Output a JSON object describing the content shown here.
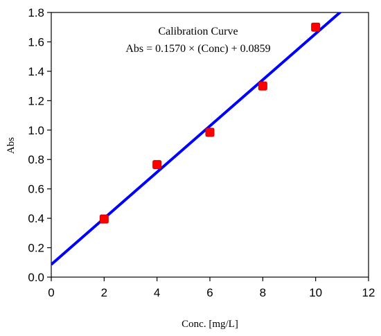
{
  "chart_data": {
    "type": "scatter",
    "title": "Calibration Curve",
    "subtitle": "Abs = 0.1570 × (Conc) + 0.0859",
    "xlabel": "Conc. [mg/L]",
    "ylabel": "Abs",
    "xlim": [
      0,
      12
    ],
    "ylim": [
      0,
      1.8
    ],
    "x_ticks": [
      0,
      2,
      4,
      6,
      8,
      10,
      12
    ],
    "y_ticks": [
      0.0,
      0.2,
      0.4,
      0.6,
      0.8,
      1.0,
      1.2,
      1.4,
      1.6,
      1.8
    ],
    "x_tick_labels": [
      "0",
      "2",
      "4",
      "6",
      "8",
      "10",
      "12"
    ],
    "y_tick_labels": [
      "0.0",
      "0.2",
      "0.4",
      "0.6",
      "0.8",
      "1.0",
      "1.2",
      "1.4",
      "1.6",
      "1.8"
    ],
    "grid": false,
    "series": [
      {
        "kind": "points",
        "color": "#ff0000",
        "marker": "square",
        "x": [
          2,
          4,
          6,
          8,
          10
        ],
        "y": [
          0.395,
          0.765,
          0.985,
          1.3,
          1.7
        ]
      },
      {
        "kind": "fit-line",
        "color": "#0000ff",
        "slope": 0.157,
        "intercept": 0.0859
      }
    ]
  }
}
